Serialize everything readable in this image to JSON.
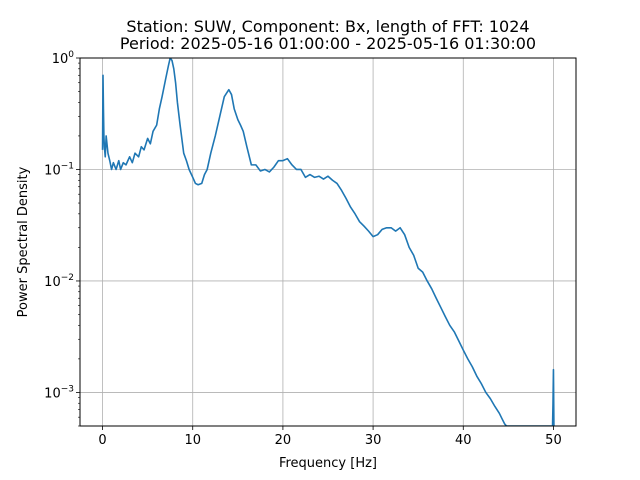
{
  "chart_data": {
    "type": "line",
    "title": "Station: SUW, Component: Bx, length of FFT: 1024",
    "subtitle": "Period: 2025-05-16 01:00:00 - 2025-05-16 01:30:00",
    "xlabel": "Frequency [Hz]",
    "ylabel": "Power Spectral Density",
    "xlim": [
      -2.5,
      52.5
    ],
    "ylim": [
      0.0005,
      1.0
    ],
    "yscale": "log",
    "grid": true,
    "line_color": "#1f77b4",
    "x_ticks": [
      0,
      10,
      20,
      30,
      40,
      50
    ],
    "y_ticks": [
      {
        "base": "10",
        "exp": "−3",
        "value": 0.001
      },
      {
        "base": "10",
        "exp": "−2",
        "value": 0.01
      },
      {
        "base": "10",
        "exp": "−1",
        "value": 0.1
      },
      {
        "base": "10",
        "exp": "0",
        "value": 1.0
      }
    ],
    "series": [
      {
        "x": [
          0.0,
          0.05,
          0.1,
          0.15,
          0.2,
          0.3,
          0.4,
          0.6,
          0.8,
          1.0,
          1.2,
          1.5,
          1.8,
          2.0,
          2.3,
          2.6,
          3.0,
          3.3,
          3.6,
          4.0,
          4.3,
          4.6,
          5.0,
          5.3,
          5.6,
          6.0,
          6.3,
          6.6,
          7.0,
          7.3,
          7.5,
          7.7,
          7.9,
          8.1,
          8.3,
          8.6,
          9.0,
          9.3,
          9.6,
          10.0,
          10.3,
          10.6,
          11.0,
          11.3,
          11.6,
          12.0,
          12.5,
          13.0,
          13.5,
          14.0,
          14.3,
          14.6,
          15.0,
          15.3,
          15.6,
          16.0,
          16.5,
          17.0,
          17.5,
          18.0,
          18.5,
          19.0,
          19.5,
          20.0,
          20.5,
          21.0,
          21.5,
          22.0,
          22.5,
          23.0,
          23.5,
          24.0,
          24.5,
          25.0,
          25.5,
          26.0,
          26.5,
          27.0,
          27.5,
          28.0,
          28.5,
          29.0,
          29.5,
          30.0,
          30.5,
          31.0,
          31.5,
          32.0,
          32.5,
          33.0,
          33.5,
          34.0,
          34.5,
          35.0,
          35.5,
          36.0,
          36.5,
          37.0,
          37.5,
          38.0,
          38.5,
          39.0,
          39.5,
          40.0,
          40.5,
          41.0,
          41.5,
          42.0,
          42.5,
          43.0,
          43.5,
          44.0,
          44.3,
          44.6,
          44.8,
          49.9,
          49.95,
          50.0,
          50.05
        ],
        "y": [
          0.15,
          0.7,
          0.35,
          0.2,
          0.16,
          0.13,
          0.2,
          0.14,
          0.12,
          0.1,
          0.115,
          0.1,
          0.12,
          0.1,
          0.115,
          0.11,
          0.13,
          0.115,
          0.14,
          0.13,
          0.16,
          0.15,
          0.19,
          0.17,
          0.22,
          0.25,
          0.35,
          0.45,
          0.65,
          0.85,
          1.0,
          0.95,
          0.8,
          0.6,
          0.4,
          0.25,
          0.14,
          0.12,
          0.1,
          0.085,
          0.075,
          0.073,
          0.075,
          0.09,
          0.1,
          0.14,
          0.2,
          0.3,
          0.45,
          0.52,
          0.47,
          0.35,
          0.28,
          0.25,
          0.22,
          0.16,
          0.11,
          0.11,
          0.097,
          0.1,
          0.095,
          0.105,
          0.12,
          0.12,
          0.125,
          0.11,
          0.1,
          0.1,
          0.085,
          0.09,
          0.085,
          0.087,
          0.082,
          0.087,
          0.08,
          0.075,
          0.065,
          0.055,
          0.046,
          0.04,
          0.034,
          0.031,
          0.028,
          0.025,
          0.026,
          0.029,
          0.03,
          0.03,
          0.028,
          0.03,
          0.026,
          0.02,
          0.017,
          0.013,
          0.012,
          0.01,
          0.0085,
          0.007,
          0.0058,
          0.0048,
          0.004,
          0.0035,
          0.0029,
          0.0024,
          0.002,
          0.0017,
          0.0014,
          0.0012,
          0.001,
          0.00088,
          0.00075,
          0.00065,
          0.00058,
          0.00052,
          0.0005,
          0.0005,
          0.0008,
          0.0016,
          0.0005
        ]
      }
    ]
  }
}
